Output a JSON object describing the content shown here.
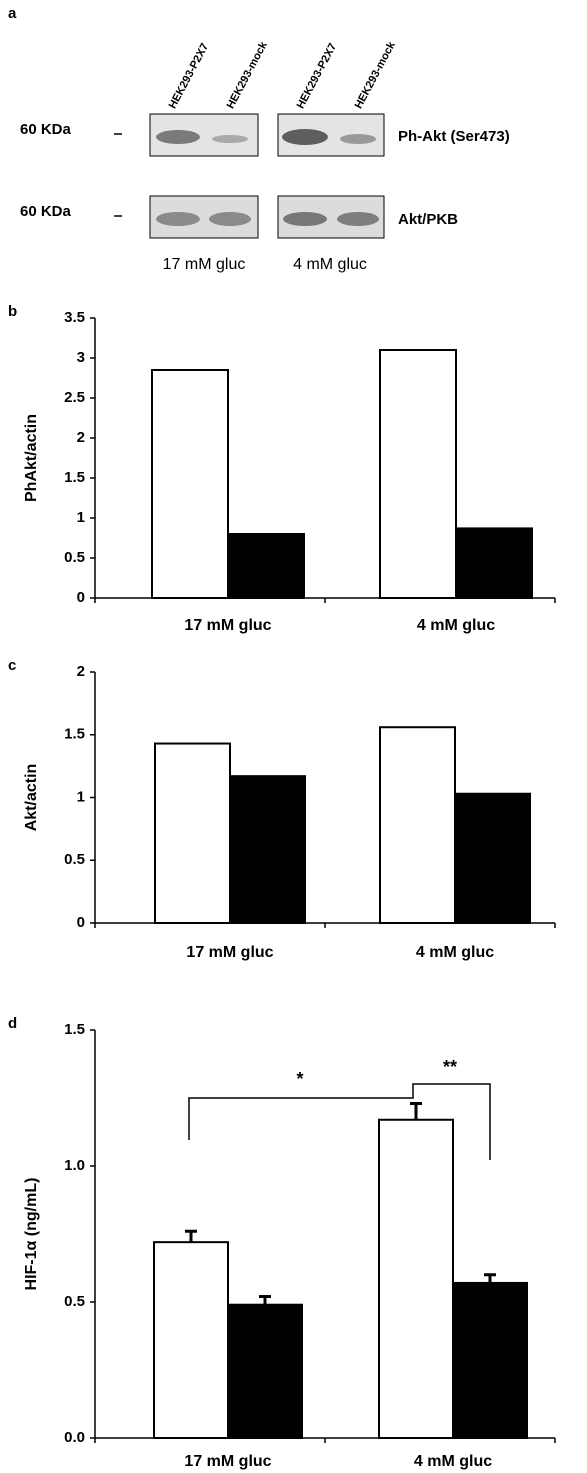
{
  "blot": {
    "panel": "a",
    "lanes": [
      "HEK293-P2X7",
      "HEK293-mock",
      "HEK293-P2X7",
      "HEK293-mock"
    ],
    "markers": [
      "60 KDa",
      "60 KDa"
    ],
    "rows": [
      "Ph-Akt (Ser473)",
      "Akt/PKB"
    ],
    "conditions": [
      "17 mM gluc",
      "4 mM gluc"
    ]
  },
  "chart_data": [
    {
      "type": "bar",
      "panel": "b",
      "y_label": "PhAkt/actin",
      "categories": [
        "17 mM gluc",
        "4 mM gluc"
      ],
      "series": [
        {
          "color": "#ffffff",
          "values": [
            2.85,
            3.1
          ]
        },
        {
          "color": "#000000",
          "values": [
            0.8,
            0.87
          ]
        }
      ],
      "ylim": [
        0,
        3.5
      ],
      "yticks": [
        0,
        0.5,
        1,
        1.5,
        2,
        2.5,
        3,
        3.5
      ]
    },
    {
      "type": "bar",
      "panel": "c",
      "y_label": "Akt/actin",
      "categories": [
        "17 mM gluc",
        "4 mM gluc"
      ],
      "series": [
        {
          "color": "#ffffff",
          "values": [
            1.43,
            1.56
          ]
        },
        {
          "color": "#000000",
          "values": [
            1.17,
            1.03
          ]
        }
      ],
      "ylim": [
        0,
        2
      ],
      "yticks": [
        0,
        0.5,
        1,
        1.5,
        2
      ]
    },
    {
      "type": "bar",
      "panel": "d",
      "y_label": "HIF-1α (ng/mL)",
      "categories": [
        "17 mM gluc",
        "4 mM gluc"
      ],
      "series": [
        {
          "color": "#ffffff",
          "values": [
            0.72,
            1.17
          ],
          "errors": [
            0.04,
            0.06
          ]
        },
        {
          "color": "#000000",
          "values": [
            0.49,
            0.57
          ],
          "errors": [
            0.03,
            0.03
          ]
        }
      ],
      "ylim": [
        0,
        1.5
      ],
      "yticks": [
        {
          "value": 0,
          "label": "0.0"
        },
        {
          "value": 0.5,
          "label": "0.5"
        },
        {
          "value": 1,
          "label": "1.0"
        },
        {
          "value": 1.5,
          "label": "1.5"
        }
      ],
      "annotations": [
        "*",
        "**"
      ]
    }
  ]
}
